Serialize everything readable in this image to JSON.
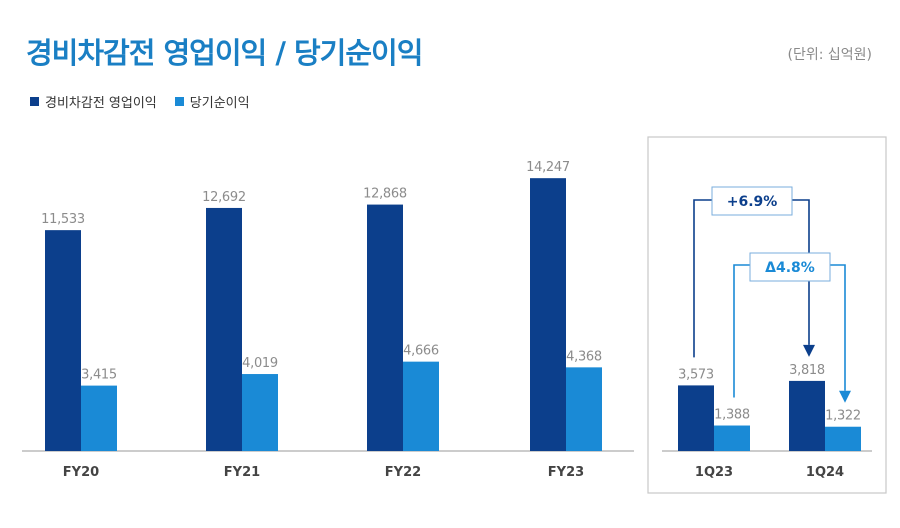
{
  "title": "경비차감전 영업이익 / 당기순이익",
  "unit_label": "(단위: 십억원)",
  "colors": {
    "operating": "#0c3f8c",
    "net": "#1a8ad6",
    "title": "#1a7fc4",
    "label": "#8c8c8c"
  },
  "chart_data": {
    "type": "bar",
    "title": "경비차감전 영업이익 / 당기순이익",
    "unit": "(단위: 십억원)",
    "legend_position": "top-left",
    "series": [
      {
        "name": "경비차감전 영업이익",
        "values": [
          11533,
          12692,
          12868,
          14247,
          3573,
          3818
        ]
      },
      {
        "name": "당기순이익",
        "values": [
          3415,
          4019,
          4666,
          4368,
          1388,
          1322
        ]
      }
    ],
    "categories": [
      "FY20",
      "FY21",
      "FY22",
      "FY23",
      "1Q23",
      "1Q24"
    ],
    "value_labels": [
      [
        "11,533",
        "12,692",
        "12,868",
        "14,247",
        "3,573",
        "3,818"
      ],
      [
        "3,415",
        "4,019",
        "4,666",
        "4,368",
        "1,388",
        "1,322"
      ]
    ],
    "annotations": [
      {
        "text": "+6.9%",
        "series": "경비차감전 영업이익",
        "from": "1Q23",
        "to": "1Q24"
      },
      {
        "text": "Δ4.8%",
        "series": "당기순이익",
        "from": "1Q23",
        "to": "1Q24"
      }
    ]
  }
}
